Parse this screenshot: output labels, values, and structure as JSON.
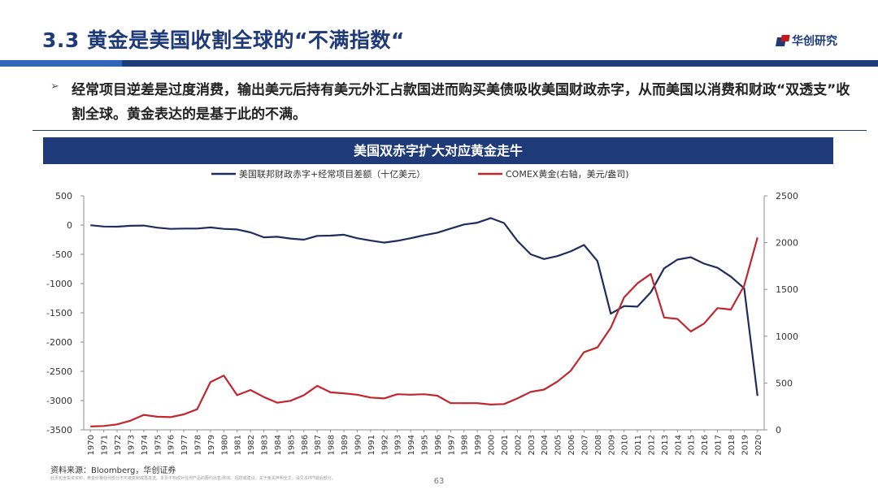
{
  "header": {
    "title": "3.3 黄金是美国收割全球的“不满指数“",
    "logo_text": "华创研究"
  },
  "body": {
    "bullet_text": "经常项目逆差是过度消费，输出美元后持有美元外汇占款国进而购买美债吸收美国财政赤字，从而美国以消费和财政“双透支”收割全球。黄金表达的是基于此的不满。"
  },
  "chart_banner": "美国双赤字扩大对应黄金走牛",
  "footer": {
    "source": "资料来源：Bloomberg，华创证券",
    "disclaimer": "此页包含投资资料，黄金价格任何部分不可被复制或再发送。本页不构成对任何产品的要约出售/购买、招揽或建议。关于免责声明全文，请见本PPT最后部分。",
    "page_number": "63"
  },
  "colors": {
    "primary": "#1e3a78",
    "series_left": "#1f2d5c",
    "series_right": "#c0272d"
  },
  "chart_data": {
    "type": "line",
    "x": [
      1970,
      1971,
      1972,
      1973,
      1974,
      1975,
      1976,
      1977,
      1978,
      1979,
      1980,
      1981,
      1982,
      1983,
      1984,
      1985,
      1986,
      1987,
      1988,
      1989,
      1990,
      1991,
      1992,
      1993,
      1994,
      1995,
      1996,
      1997,
      1998,
      1999,
      2000,
      2001,
      2002,
      2003,
      2004,
      2005,
      2006,
      2007,
      2008,
      2009,
      2010,
      2011,
      2012,
      2013,
      2014,
      2015,
      2016,
      2017,
      2018,
      2019,
      2020
    ],
    "x_tick_labels": [
      "1970",
      "1971",
      "1972",
      "1973",
      "1974",
      "1975",
      "1976",
      "1977",
      "1978",
      "1979",
      "1980",
      "1981",
      "1982",
      "1983",
      "1984",
      "1985",
      "1986",
      "1987",
      "1988",
      "1989",
      "1990",
      "1991",
      "1992",
      "1993",
      "1994",
      "1995",
      "1996",
      "1997",
      "1998",
      "1999",
      "2000",
      "2001",
      "2002",
      "2003",
      "2004",
      "2005",
      "2006",
      "2007",
      "2008",
      "2009",
      "2010",
      "2011",
      "2012",
      "2013",
      "2014",
      "2015",
      "2016",
      "2017",
      "2018",
      "2019",
      "2020"
    ],
    "series": [
      {
        "name": "美国联邦财政赤字+经常项目差额（十亿美元）",
        "axis": "left",
        "color": "#1f2d5c",
        "values": [
          -3,
          -25,
          -28,
          -12,
          -8,
          -45,
          -65,
          -60,
          -60,
          -40,
          -65,
          -75,
          -125,
          -210,
          -200,
          -230,
          -250,
          -185,
          -180,
          -165,
          -225,
          -265,
          -300,
          -270,
          -225,
          -175,
          -130,
          -60,
          10,
          40,
          120,
          35,
          -270,
          -500,
          -580,
          -530,
          -450,
          -340,
          -615,
          -1515,
          -1385,
          -1395,
          -1150,
          -740,
          -590,
          -550,
          -660,
          -730,
          -880,
          -1080,
          -2920
        ]
      },
      {
        "name": "COMEX黄金(右轴，美元/盎司)",
        "axis": "right",
        "color": "#c0272d",
        "values": [
          36,
          41,
          58,
          97,
          160,
          140,
          135,
          165,
          220,
          510,
          580,
          370,
          425,
          350,
          290,
          310,
          370,
          470,
          400,
          390,
          375,
          345,
          335,
          380,
          375,
          380,
          365,
          285,
          285,
          285,
          270,
          275,
          335,
          405,
          430,
          515,
          630,
          830,
          880,
          1090,
          1415,
          1565,
          1665,
          1200,
          1185,
          1050,
          1135,
          1300,
          1285,
          1540,
          2055
        ]
      }
    ],
    "y_left": {
      "min": -3500,
      "max": 500,
      "ticks": [
        500,
        0,
        -500,
        -1000,
        -1500,
        -2000,
        -2500,
        -3000,
        -3500
      ]
    },
    "y_right": {
      "min": 0,
      "max": 2500,
      "ticks": [
        2500,
        2000,
        1500,
        1000,
        500,
        0
      ]
    },
    "grid": false,
    "legend_position": "top"
  }
}
